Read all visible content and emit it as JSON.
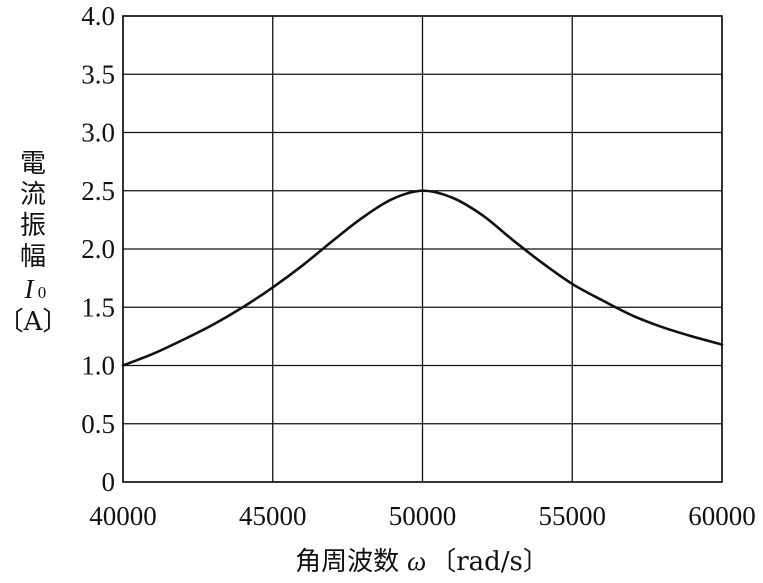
{
  "chart_data": {
    "type": "line",
    "title": "",
    "xlabel": {
      "text": "角周波数",
      "symbol": "ω",
      "unit": "〔rad/s〕"
    },
    "ylabel": {
      "text": "電流振幅",
      "symbol": "I",
      "subscript": "0",
      "unit": "〔A〕"
    },
    "xlim": [
      40000,
      60000
    ],
    "ylim": [
      0,
      4.0
    ],
    "x_ticks": [
      "40000",
      "45000",
      "50000",
      "55000",
      "60000"
    ],
    "y_ticks": [
      "0",
      "0.5",
      "1.0",
      "1.5",
      "2.0",
      "2.5",
      "3.0",
      "3.5",
      "4.0"
    ],
    "grid": true,
    "legend": "none",
    "series": [
      {
        "color": "#111111",
        "x": [
          40000,
          41000,
          42000,
          43000,
          44000,
          45000,
          46000,
          47000,
          48000,
          49000,
          50000,
          51000,
          52000,
          53000,
          54000,
          55000,
          56000,
          57000,
          58000,
          59000,
          60000
        ],
        "y": [
          1.0,
          1.1,
          1.22,
          1.35,
          1.5,
          1.67,
          1.86,
          2.07,
          2.27,
          2.43,
          2.5,
          2.44,
          2.29,
          2.08,
          1.88,
          1.7,
          1.56,
          1.43,
          1.33,
          1.25,
          1.18
        ]
      }
    ]
  }
}
